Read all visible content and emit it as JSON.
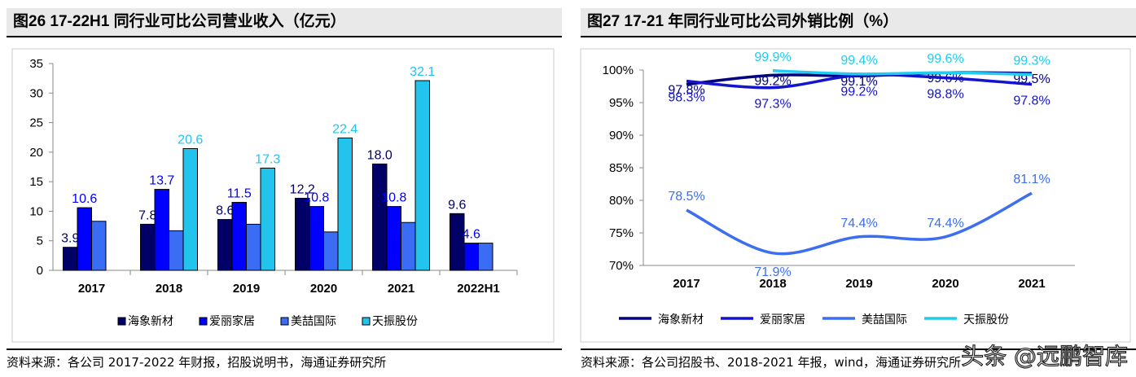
{
  "charts_titles": [
    "图26  17-22H1 同行业可比公司营业收入（亿元）",
    "图27  17-21 年同行业可比公司外销比例（%）"
  ],
  "footers": [
    "资料来源：各公司 2017-2022 年财报，招股说明书，海通证券研究所",
    "资料来源：各公司招股书、2018-2021 年报，wind，海通证券研究所"
  ],
  "watermark": "头条 @远鹏智库",
  "chart_data": [
    {
      "type": "bar",
      "title": "图26  17-22H1 同行业可比公司营业收入（亿元）",
      "categories": [
        "2017",
        "2018",
        "2019",
        "2020",
        "2021",
        "2022H1"
      ],
      "ylim": [
        0,
        35
      ],
      "yticks": [
        0,
        5,
        10,
        15,
        20,
        25,
        30,
        35
      ],
      "legend": "bottom",
      "series": [
        {
          "name": "海象新材",
          "color": "#000066",
          "values": [
            3.9,
            7.8,
            8.6,
            12.2,
            18.0,
            9.6
          ],
          "labels": [
            "3.9",
            "7.8",
            "8.6",
            "12.2",
            "18.0",
            "9.6"
          ]
        },
        {
          "name": "爱丽家居",
          "color": "#0000ff",
          "values": [
            10.6,
            13.7,
            11.5,
            10.8,
            10.8,
            4.6
          ],
          "labels": [
            "10.6",
            "13.7",
            "11.5",
            "10.8",
            "10.8",
            "4.6"
          ]
        },
        {
          "name": "美喆国际",
          "color": "#3a6cf4",
          "values": [
            8.3,
            6.7,
            7.8,
            6.5,
            8.1,
            4.6
          ],
          "labels": [
            null,
            null,
            null,
            null,
            null,
            null
          ]
        },
        {
          "name": "天振股份",
          "color": "#22c4ee",
          "values": [
            null,
            20.6,
            17.3,
            22.4,
            32.1,
            null
          ],
          "labels": [
            null,
            "20.6",
            "17.3",
            "22.4",
            "32.1",
            null
          ]
        }
      ]
    },
    {
      "type": "line",
      "title": "图27  17-21 年同行业可比公司外销比例（%）",
      "categories": [
        "2017",
        "2018",
        "2019",
        "2020",
        "2021"
      ],
      "ylim": [
        70,
        100
      ],
      "yticks": [
        "70%",
        "75%",
        "80%",
        "85%",
        "90%",
        "95%",
        "100%"
      ],
      "legend": "bottom",
      "series": [
        {
          "name": "海象新材",
          "color": "#000080",
          "values": [
            97.8,
            99.2,
            99.1,
            99.6,
            99.5
          ]
        },
        {
          "name": "爱丽家居",
          "color": "#1414cc",
          "values": [
            98.3,
            97.3,
            99.2,
            98.8,
            97.8
          ]
        },
        {
          "name": "美喆国际",
          "color": "#3d6ef0",
          "values": [
            78.5,
            71.9,
            74.4,
            74.4,
            81.1
          ]
        },
        {
          "name": "天振股份",
          "color": "#22ccee",
          "values": [
            null,
            99.9,
            99.4,
            99.6,
            99.3
          ]
        }
      ]
    }
  ]
}
